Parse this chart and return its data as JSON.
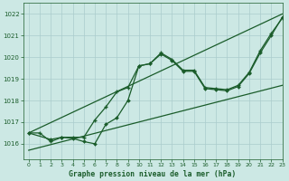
{
  "title": "Graphe pression niveau de la mer (hPa)",
  "background_color": "#cce8e4",
  "grid_color": "#aacccc",
  "line_color": "#1a5c2a",
  "xlim": [
    -0.5,
    23
  ],
  "ylim": [
    1015.3,
    1022.5
  ],
  "yticks": [
    1016,
    1017,
    1018,
    1019,
    1020,
    1021,
    1022
  ],
  "xticks": [
    0,
    1,
    2,
    3,
    4,
    5,
    6,
    7,
    8,
    9,
    10,
    11,
    12,
    13,
    14,
    15,
    16,
    17,
    18,
    19,
    20,
    21,
    22,
    23
  ],
  "series_plus": {
    "x": [
      0,
      1,
      2,
      3,
      4,
      5,
      6,
      7,
      8,
      9,
      10,
      11,
      12,
      13,
      14,
      15,
      16,
      17,
      18,
      19,
      20,
      21,
      22,
      23
    ],
    "y": [
      1016.5,
      1016.5,
      1016.1,
      1016.3,
      1016.3,
      1016.3,
      1017.1,
      1017.7,
      1018.4,
      1018.6,
      1019.6,
      1019.7,
      1020.2,
      1019.9,
      1019.4,
      1019.4,
      1018.6,
      1018.55,
      1018.5,
      1018.7,
      1019.3,
      1020.3,
      1021.1,
      1021.8
    ]
  },
  "series_diamond": {
    "x": [
      0,
      2,
      3,
      4,
      5,
      6,
      7,
      8,
      9,
      10,
      11,
      12,
      13,
      14,
      15,
      16,
      17,
      18,
      19,
      20,
      21,
      22,
      23
    ],
    "y": [
      1016.5,
      1016.2,
      1016.3,
      1016.25,
      1016.1,
      1016.0,
      1016.9,
      1017.2,
      1018.0,
      1019.6,
      1019.7,
      1020.15,
      1019.85,
      1019.35,
      1019.35,
      1018.55,
      1018.5,
      1018.45,
      1018.65,
      1019.25,
      1020.2,
      1021.0,
      1021.85
    ]
  },
  "series_line1": {
    "x": [
      0,
      23
    ],
    "y": [
      1016.5,
      1022.0
    ]
  },
  "series_line2": {
    "x": [
      0,
      23
    ],
    "y": [
      1015.7,
      1018.7
    ]
  }
}
